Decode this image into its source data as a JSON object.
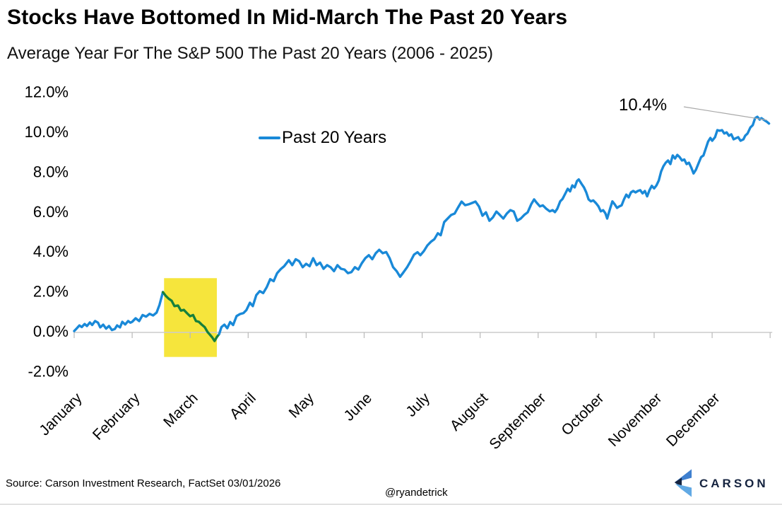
{
  "page": {
    "title": "Stocks Have Bottomed In Mid-March The Past 20 Years",
    "subtitle": "Average Year For The S&P 500 The Past 20 Years (2006 - 2025)",
    "footer": {
      "source": "Source: Carson Investment Research, FactSet 03/01/2026",
      "handle": "@ryandetrick",
      "logo_text": "CARSON"
    }
  },
  "colors": {
    "line_blue": "#1989d8",
    "dip_green": "#16803c",
    "band_yellow": "#F6E53C",
    "axis_gray": "#cbcbcb",
    "tick_gray": "#b9b9b9",
    "leader_gray": "#a9a9a9",
    "logo_navy": "#15233f",
    "logo_mid_blue": "#3f80cf",
    "logo_light_blue": "#61a9e4"
  },
  "chart_data": {
    "type": "line",
    "title": "Stocks Have Bottomed In Mid-March The Past 20 Years",
    "subtitle": "Average Year For The S&P 500 The Past 20 Years (2006 - 2025)",
    "grid": "none",
    "legend": {
      "label": "Past 20 Years",
      "position": "top-left-of-plot"
    },
    "x_axis": {
      "labels": [
        "January",
        "February",
        "March",
        "April",
        "May",
        "June",
        "July",
        "August",
        "September",
        "October",
        "November",
        "December"
      ],
      "unit": "month",
      "boundary_ticks": 13,
      "label_rotation_deg": -45
    },
    "y_axis": {
      "unit": "%",
      "range": [
        -2,
        12
      ],
      "ticks": [
        {
          "value": 12,
          "label": "12.0%"
        },
        {
          "value": 10,
          "label": "10.0%"
        },
        {
          "value": 8,
          "label": "8.0%"
        },
        {
          "value": 6,
          "label": "6.0%"
        },
        {
          "value": 4,
          "label": "4.0%"
        },
        {
          "value": 2,
          "label": "2.0%"
        },
        {
          "value": 0,
          "label": "0.0%"
        },
        {
          "value": -2,
          "label": "-2.0%"
        }
      ]
    },
    "annotation": {
      "label": "10.4%",
      "month": 11.98,
      "value": 10.4
    },
    "highlight_band": {
      "meaning": "mid-March bottom window",
      "month_start": 1.55,
      "month_end": 2.46,
      "value_top": 2.65,
      "value_bottom": -1.3,
      "color": "#F6E53C"
    },
    "series": [
      {
        "name": "Past 20 Years",
        "color": "#1989d8",
        "dip_color": "#16803c",
        "dip_month_start": 1.53,
        "dip_month_end": 2.5,
        "points": [
          [
            0.0,
            0.0
          ],
          [
            0.05,
            0.15
          ],
          [
            0.09,
            0.28
          ],
          [
            0.13,
            0.2
          ],
          [
            0.18,
            0.35
          ],
          [
            0.22,
            0.25
          ],
          [
            0.27,
            0.43
          ],
          [
            0.31,
            0.3
          ],
          [
            0.36,
            0.5
          ],
          [
            0.41,
            0.42
          ],
          [
            0.45,
            0.18
          ],
          [
            0.5,
            0.32
          ],
          [
            0.55,
            0.12
          ],
          [
            0.6,
            0.25
          ],
          [
            0.65,
            0.05
          ],
          [
            0.7,
            0.1
          ],
          [
            0.74,
            0.28
          ],
          [
            0.79,
            0.18
          ],
          [
            0.83,
            0.46
          ],
          [
            0.88,
            0.33
          ],
          [
            0.93,
            0.5
          ],
          [
            0.97,
            0.42
          ],
          [
            1.0,
            0.46
          ],
          [
            1.06,
            0.64
          ],
          [
            1.12,
            0.5
          ],
          [
            1.18,
            0.8
          ],
          [
            1.24,
            0.72
          ],
          [
            1.3,
            0.86
          ],
          [
            1.36,
            0.78
          ],
          [
            1.42,
            0.92
          ],
          [
            1.47,
            1.3
          ],
          [
            1.53,
            1.95
          ],
          [
            1.58,
            1.76
          ],
          [
            1.63,
            1.62
          ],
          [
            1.68,
            1.52
          ],
          [
            1.73,
            1.25
          ],
          [
            1.79,
            1.28
          ],
          [
            1.84,
            1.02
          ],
          [
            1.89,
            1.06
          ],
          [
            1.95,
            0.88
          ],
          [
            2.0,
            0.74
          ],
          [
            2.05,
            0.8
          ],
          [
            2.1,
            0.5
          ],
          [
            2.15,
            0.46
          ],
          [
            2.2,
            0.32
          ],
          [
            2.25,
            0.2
          ],
          [
            2.3,
            -0.05
          ],
          [
            2.34,
            -0.18
          ],
          [
            2.38,
            -0.32
          ],
          [
            2.42,
            -0.5
          ],
          [
            2.46,
            -0.3
          ],
          [
            2.5,
            -0.15
          ],
          [
            2.54,
            0.2
          ],
          [
            2.59,
            0.32
          ],
          [
            2.64,
            0.14
          ],
          [
            2.69,
            0.45
          ],
          [
            2.74,
            0.3
          ],
          [
            2.8,
            0.75
          ],
          [
            2.86,
            0.85
          ],
          [
            2.92,
            0.9
          ],
          [
            2.97,
            1.05
          ],
          [
            3.03,
            1.42
          ],
          [
            3.08,
            1.25
          ],
          [
            3.14,
            1.8
          ],
          [
            3.2,
            2.0
          ],
          [
            3.26,
            1.9
          ],
          [
            3.32,
            2.2
          ],
          [
            3.38,
            2.6
          ],
          [
            3.44,
            2.5
          ],
          [
            3.5,
            2.9
          ],
          [
            3.56,
            3.1
          ],
          [
            3.62,
            3.25
          ],
          [
            3.7,
            3.55
          ],
          [
            3.76,
            3.3
          ],
          [
            3.82,
            3.6
          ],
          [
            3.88,
            3.5
          ],
          [
            3.94,
            3.2
          ],
          [
            4.0,
            3.37
          ],
          [
            4.06,
            3.25
          ],
          [
            4.12,
            3.65
          ],
          [
            4.18,
            3.3
          ],
          [
            4.24,
            3.43
          ],
          [
            4.3,
            3.12
          ],
          [
            4.36,
            3.3
          ],
          [
            4.42,
            3.2
          ],
          [
            4.48,
            3.0
          ],
          [
            4.54,
            3.3
          ],
          [
            4.6,
            3.12
          ],
          [
            4.66,
            3.08
          ],
          [
            4.72,
            2.9
          ],
          [
            4.78,
            2.95
          ],
          [
            4.84,
            3.2
          ],
          [
            4.9,
            3.08
          ],
          [
            4.96,
            3.4
          ],
          [
            5.02,
            3.65
          ],
          [
            5.08,
            3.8
          ],
          [
            5.14,
            3.6
          ],
          [
            5.2,
            3.9
          ],
          [
            5.26,
            4.07
          ],
          [
            5.32,
            3.9
          ],
          [
            5.38,
            3.96
          ],
          [
            5.44,
            3.65
          ],
          [
            5.5,
            3.2
          ],
          [
            5.56,
            3.0
          ],
          [
            5.62,
            2.72
          ],
          [
            5.68,
            2.95
          ],
          [
            5.74,
            3.2
          ],
          [
            5.8,
            3.5
          ],
          [
            5.86,
            3.83
          ],
          [
            5.92,
            3.95
          ],
          [
            5.97,
            3.8
          ],
          [
            6.03,
            4.01
          ],
          [
            6.09,
            4.29
          ],
          [
            6.15,
            4.47
          ],
          [
            6.21,
            4.6
          ],
          [
            6.27,
            4.9
          ],
          [
            6.32,
            4.8
          ],
          [
            6.38,
            5.46
          ],
          [
            6.44,
            5.64
          ],
          [
            6.5,
            5.82
          ],
          [
            6.56,
            5.89
          ],
          [
            6.62,
            6.2
          ],
          [
            6.68,
            6.49
          ],
          [
            6.74,
            6.31
          ],
          [
            6.8,
            6.35
          ],
          [
            6.86,
            6.42
          ],
          [
            6.92,
            6.49
          ],
          [
            6.98,
            6.24
          ],
          [
            7.04,
            5.78
          ],
          [
            7.1,
            5.95
          ],
          [
            7.16,
            5.53
          ],
          [
            7.22,
            5.7
          ],
          [
            7.28,
            5.99
          ],
          [
            7.34,
            5.82
          ],
          [
            7.4,
            5.64
          ],
          [
            7.46,
            5.89
          ],
          [
            7.52,
            6.06
          ],
          [
            7.58,
            5.99
          ],
          [
            7.64,
            5.53
          ],
          [
            7.7,
            5.64
          ],
          [
            7.76,
            5.82
          ],
          [
            7.82,
            5.95
          ],
          [
            7.88,
            6.35
          ],
          [
            7.93,
            6.6
          ],
          [
            7.97,
            6.45
          ],
          [
            8.03,
            6.25
          ],
          [
            8.08,
            6.3
          ],
          [
            8.14,
            6.13
          ],
          [
            8.2,
            6.0
          ],
          [
            8.25,
            6.06
          ],
          [
            8.29,
            5.96
          ],
          [
            8.33,
            6.13
          ],
          [
            8.38,
            6.5
          ],
          [
            8.42,
            6.62
          ],
          [
            8.47,
            6.9
          ],
          [
            8.51,
            7.13
          ],
          [
            8.55,
            7.0
          ],
          [
            8.59,
            7.3
          ],
          [
            8.63,
            7.2
          ],
          [
            8.67,
            7.52
          ],
          [
            8.7,
            7.6
          ],
          [
            8.75,
            7.37
          ],
          [
            8.79,
            7.2
          ],
          [
            8.83,
            6.95
          ],
          [
            8.87,
            6.6
          ],
          [
            8.91,
            6.5
          ],
          [
            8.95,
            6.55
          ],
          [
            9.0,
            6.4
          ],
          [
            9.04,
            6.25
          ],
          [
            9.08,
            6.0
          ],
          [
            9.12,
            6.06
          ],
          [
            9.16,
            5.9
          ],
          [
            9.19,
            5.64
          ],
          [
            9.24,
            6.13
          ],
          [
            9.28,
            6.5
          ],
          [
            9.32,
            6.35
          ],
          [
            9.36,
            6.17
          ],
          [
            9.4,
            6.25
          ],
          [
            9.44,
            6.3
          ],
          [
            9.48,
            6.6
          ],
          [
            9.52,
            6.84
          ],
          [
            9.56,
            6.7
          ],
          [
            9.6,
            6.95
          ],
          [
            9.64,
            7.02
          ],
          [
            9.68,
            6.95
          ],
          [
            9.72,
            7.02
          ],
          [
            9.76,
            7.06
          ],
          [
            9.8,
            6.9
          ],
          [
            9.84,
            7.02
          ],
          [
            9.88,
            6.75
          ],
          [
            9.92,
            7.06
          ],
          [
            9.96,
            7.28
          ],
          [
            10.0,
            7.15
          ],
          [
            10.04,
            7.3
          ],
          [
            10.08,
            7.55
          ],
          [
            10.12,
            8.0
          ],
          [
            10.16,
            8.26
          ],
          [
            10.2,
            8.44
          ],
          [
            10.24,
            8.55
          ],
          [
            10.28,
            8.37
          ],
          [
            10.32,
            8.8
          ],
          [
            10.36,
            8.65
          ],
          [
            10.4,
            8.83
          ],
          [
            10.44,
            8.72
          ],
          [
            10.48,
            8.55
          ],
          [
            10.52,
            8.6
          ],
          [
            10.56,
            8.37
          ],
          [
            10.6,
            8.44
          ],
          [
            10.64,
            8.2
          ],
          [
            10.68,
            7.9
          ],
          [
            10.72,
            8.08
          ],
          [
            10.76,
            8.37
          ],
          [
            10.81,
            8.72
          ],
          [
            10.85,
            8.8
          ],
          [
            10.89,
            9.15
          ],
          [
            10.93,
            9.5
          ],
          [
            10.97,
            9.68
          ],
          [
            11.0,
            9.54
          ],
          [
            11.05,
            9.72
          ],
          [
            11.09,
            10.07
          ],
          [
            11.13,
            10.04
          ],
          [
            11.17,
            10.07
          ],
          [
            11.21,
            9.9
          ],
          [
            11.25,
            9.96
          ],
          [
            11.29,
            9.79
          ],
          [
            11.33,
            9.86
          ],
          [
            11.37,
            9.61
          ],
          [
            11.42,
            9.68
          ],
          [
            11.45,
            9.72
          ],
          [
            11.49,
            9.54
          ],
          [
            11.54,
            9.61
          ],
          [
            11.57,
            9.79
          ],
          [
            11.61,
            9.9
          ],
          [
            11.66,
            10.21
          ],
          [
            11.7,
            10.32
          ],
          [
            11.74,
            10.67
          ],
          [
            11.78,
            10.74
          ],
          [
            11.82,
            10.6
          ],
          [
            11.85,
            10.67
          ],
          [
            11.9,
            10.57
          ],
          [
            11.94,
            10.5
          ],
          [
            11.98,
            10.4
          ]
        ]
      }
    ]
  }
}
